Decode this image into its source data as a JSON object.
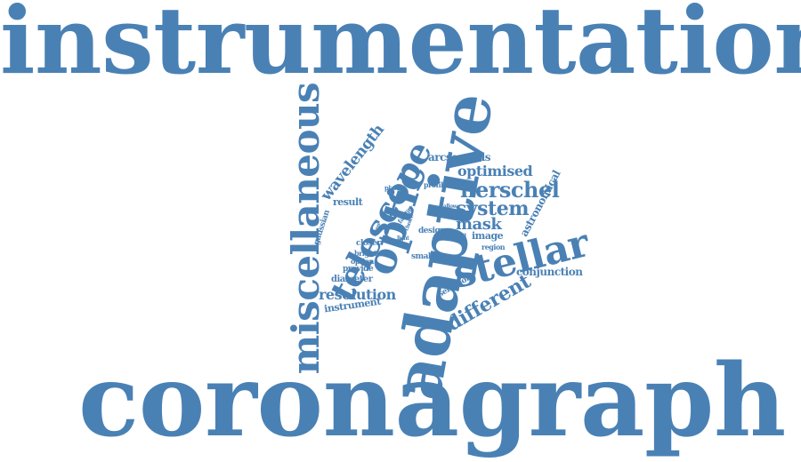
{
  "word_color": "#4a81b5",
  "background": "#ffffff",
  "words": [
    {
      "text": "instrumentation"
    },
    {
      "text": "coronagraph"
    },
    {
      "text": "adaptive"
    },
    {
      "text": "miscellaneous"
    },
    {
      "text": "optic"
    },
    {
      "text": "telescope"
    },
    {
      "text": "stellar"
    },
    {
      "text": "herschel"
    },
    {
      "text": "system"
    },
    {
      "text": "wavelength"
    },
    {
      "text": "different"
    },
    {
      "text": "optimised"
    },
    {
      "text": "mask"
    },
    {
      "text": "resolution"
    },
    {
      "text": "astronomical"
    },
    {
      "text": "arcseconds"
    },
    {
      "text": "conjunction"
    },
    {
      "text": "image"
    },
    {
      "text": "instrument"
    },
    {
      "text": "result"
    },
    {
      "text": "gaussian"
    },
    {
      "text": "diameter"
    },
    {
      "text": "design"
    },
    {
      "text": "selection"
    },
    {
      "text": "provide"
    },
    {
      "text": "smaller"
    },
    {
      "text": "closer"
    },
    {
      "text": "region"
    },
    {
      "text": "profile"
    },
    {
      "text": "bright"
    },
    {
      "text": "option"
    },
    {
      "text": "pupil"
    },
    {
      "text": "plane"
    },
    {
      "text": "facility"
    },
    {
      "text": "allow"
    },
    {
      "text": "choice"
    },
    {
      "text": "focus"
    },
    {
      "text": "light"
    },
    {
      "text": "time"
    },
    {
      "text": "step"
    }
  ]
}
